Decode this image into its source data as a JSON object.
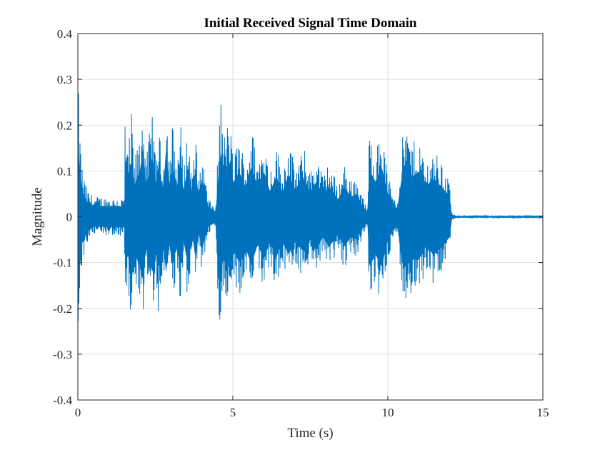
{
  "chart_data": {
    "type": "line",
    "title": "Initial Received Signal Time Domain",
    "xlabel": "Time (s)",
    "ylabel": "Magnitude",
    "xlim": [
      0,
      15
    ],
    "ylim": [
      -0.4,
      0.4
    ],
    "xticks": [
      0,
      5,
      10,
      15
    ],
    "xtick_labels": [
      "0",
      "5",
      "10",
      "15"
    ],
    "yticks": [
      -0.4,
      -0.3,
      -0.2,
      -0.1,
      0,
      0.1,
      0.2,
      0.3,
      0.4
    ],
    "ytick_labels": [
      "-0.4",
      "-0.3",
      "-0.2",
      "-0.1",
      "0",
      "0.1",
      "0.2",
      "0.3",
      "0.4"
    ],
    "grid": true,
    "line_color": "#0072BD",
    "series": [
      {
        "envelope_upper": [
          [
            0,
            0.33
          ],
          [
            0.05,
            0.2
          ],
          [
            0.15,
            0.1
          ],
          [
            0.3,
            0.06
          ],
          [
            0.5,
            0.045
          ],
          [
            1.0,
            0.042
          ],
          [
            1.5,
            0.042
          ],
          [
            1.52,
            0.25
          ],
          [
            1.6,
            0.13
          ],
          [
            1.75,
            0.24
          ],
          [
            1.8,
            0.12
          ],
          [
            2.0,
            0.18
          ],
          [
            2.1,
            0.27
          ],
          [
            2.2,
            0.12
          ],
          [
            2.4,
            0.24
          ],
          [
            2.5,
            0.13
          ],
          [
            2.6,
            0.2
          ],
          [
            2.75,
            0.11
          ],
          [
            2.85,
            0.27
          ],
          [
            2.95,
            0.12
          ],
          [
            3.05,
            0.21
          ],
          [
            3.2,
            0.11
          ],
          [
            3.3,
            0.23
          ],
          [
            3.4,
            0.1
          ],
          [
            3.55,
            0.2
          ],
          [
            3.7,
            0.09
          ],
          [
            3.8,
            0.19
          ],
          [
            3.9,
            0.08
          ],
          [
            4.0,
            0.15
          ],
          [
            4.2,
            0.04
          ],
          [
            4.45,
            0.02
          ],
          [
            4.52,
            0.15
          ],
          [
            4.62,
            0.27
          ],
          [
            4.7,
            0.18
          ],
          [
            4.9,
            0.22
          ],
          [
            5.0,
            0.13
          ],
          [
            5.2,
            0.18
          ],
          [
            5.4,
            0.12
          ],
          [
            5.6,
            0.2
          ],
          [
            5.8,
            0.12
          ],
          [
            6.0,
            0.18
          ],
          [
            6.2,
            0.1
          ],
          [
            6.4,
            0.16
          ],
          [
            6.6,
            0.1
          ],
          [
            6.8,
            0.17
          ],
          [
            7.0,
            0.11
          ],
          [
            7.3,
            0.15
          ],
          [
            7.5,
            0.1
          ],
          [
            7.7,
            0.14
          ],
          [
            7.9,
            0.09
          ],
          [
            8.1,
            0.12
          ],
          [
            8.4,
            0.07
          ],
          [
            8.6,
            0.12
          ],
          [
            8.8,
            0.08
          ],
          [
            9.0,
            0.09
          ],
          [
            9.2,
            0.04
          ],
          [
            9.35,
            0.02
          ],
          [
            9.4,
            0.19
          ],
          [
            9.6,
            0.14
          ],
          [
            9.8,
            0.2
          ],
          [
            10.0,
            0.09
          ],
          [
            10.3,
            0.03
          ],
          [
            10.45,
            0.16
          ],
          [
            10.55,
            0.21
          ],
          [
            10.8,
            0.16
          ],
          [
            11.0,
            0.18
          ],
          [
            11.2,
            0.12
          ],
          [
            11.5,
            0.15
          ],
          [
            11.8,
            0.11
          ],
          [
            12.0,
            0.08
          ],
          [
            12.05,
            0.01
          ],
          [
            12.2,
            0.002
          ],
          [
            15.0,
            0.002
          ]
        ],
        "envelope_lower": [
          [
            0,
            -0.33
          ],
          [
            0.05,
            -0.2
          ],
          [
            0.15,
            -0.1
          ],
          [
            0.3,
            -0.06
          ],
          [
            0.5,
            -0.04
          ],
          [
            1.0,
            -0.04
          ],
          [
            1.5,
            -0.042
          ],
          [
            1.52,
            -0.21
          ],
          [
            1.6,
            -0.14
          ],
          [
            1.75,
            -0.26
          ],
          [
            1.8,
            -0.13
          ],
          [
            2.0,
            -0.2
          ],
          [
            2.1,
            -0.25
          ],
          [
            2.2,
            -0.12
          ],
          [
            2.4,
            -0.22
          ],
          [
            2.5,
            -0.12
          ],
          [
            2.6,
            -0.21
          ],
          [
            2.75,
            -0.12
          ],
          [
            2.85,
            -0.22
          ],
          [
            2.95,
            -0.1
          ],
          [
            3.05,
            -0.2
          ],
          [
            3.2,
            -0.1
          ],
          [
            3.3,
            -0.21
          ],
          [
            3.4,
            -0.09
          ],
          [
            3.55,
            -0.19
          ],
          [
            3.7,
            -0.08
          ],
          [
            3.8,
            -0.17
          ],
          [
            3.9,
            -0.06
          ],
          [
            4.0,
            -0.13
          ],
          [
            4.2,
            -0.04
          ],
          [
            4.45,
            -0.02
          ],
          [
            4.52,
            -0.2
          ],
          [
            4.62,
            -0.25
          ],
          [
            4.7,
            -0.15
          ],
          [
            4.9,
            -0.21
          ],
          [
            5.0,
            -0.13
          ],
          [
            5.2,
            -0.18
          ],
          [
            5.4,
            -0.12
          ],
          [
            5.6,
            -0.19
          ],
          [
            5.8,
            -0.11
          ],
          [
            6.0,
            -0.17
          ],
          [
            6.2,
            -0.1
          ],
          [
            6.4,
            -0.16
          ],
          [
            6.6,
            -0.1
          ],
          [
            6.8,
            -0.15
          ],
          [
            7.0,
            -0.1
          ],
          [
            7.3,
            -0.14
          ],
          [
            7.5,
            -0.09
          ],
          [
            7.7,
            -0.13
          ],
          [
            7.9,
            -0.08
          ],
          [
            8.1,
            -0.12
          ],
          [
            8.4,
            -0.07
          ],
          [
            8.6,
            -0.12
          ],
          [
            8.8,
            -0.08
          ],
          [
            9.0,
            -0.09
          ],
          [
            9.2,
            -0.04
          ],
          [
            9.35,
            -0.02
          ],
          [
            9.4,
            -0.2
          ],
          [
            9.6,
            -0.15
          ],
          [
            9.8,
            -0.2
          ],
          [
            10.0,
            -0.09
          ],
          [
            10.3,
            -0.03
          ],
          [
            10.45,
            -0.18
          ],
          [
            10.55,
            -0.2
          ],
          [
            10.8,
            -0.17
          ],
          [
            11.0,
            -0.17
          ],
          [
            11.2,
            -0.12
          ],
          [
            11.5,
            -0.15
          ],
          [
            11.8,
            -0.11
          ],
          [
            12.0,
            -0.08
          ],
          [
            12.05,
            -0.01
          ],
          [
            12.2,
            -0.002
          ],
          [
            15.0,
            -0.002
          ]
        ]
      }
    ]
  }
}
